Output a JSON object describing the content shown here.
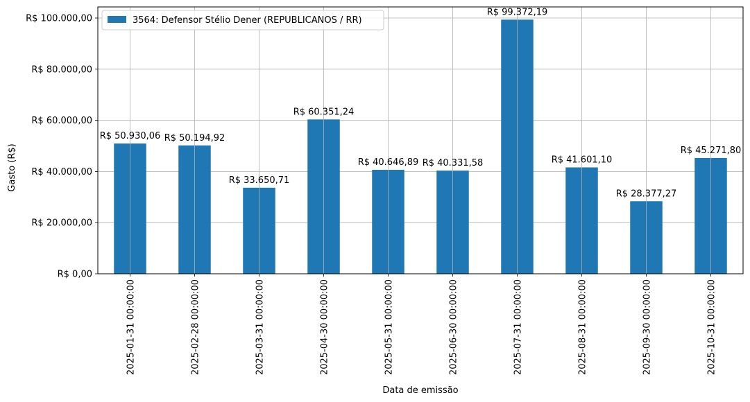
{
  "chart_data": {
    "type": "bar",
    "title": "",
    "xlabel": "Data de emissão",
    "ylabel": "Gasto (R$)",
    "categories": [
      "2025-01-31 00:00:00",
      "2025-02-28 00:00:00",
      "2025-03-31 00:00:00",
      "2025-04-30 00:00:00",
      "2025-05-31 00:00:00",
      "2025-06-30 00:00:00",
      "2025-07-31 00:00:00",
      "2025-08-31 00:00:00",
      "2025-09-30 00:00:00",
      "2025-10-31 00:00:00"
    ],
    "series": [
      {
        "name": "3564: Defensor Stélio Dener (REPUBLICANOS / RR)",
        "color": "#1f77b4",
        "values": [
          50930.06,
          50194.92,
          33650.71,
          60351.24,
          40646.89,
          40331.58,
          99372.19,
          41601.1,
          28377.27,
          45271.8
        ]
      }
    ],
    "data_labels": [
      "R$ 50.930,06",
      "R$ 50.194,92",
      "R$ 33.650,71",
      "R$ 60.351,24",
      "R$ 40.646,89",
      "R$ 40.331,58",
      "R$ 99.372,19",
      "R$ 41.601,10",
      "R$ 28.377,27",
      "R$ 45.271,80"
    ],
    "yticks": [
      0,
      20000,
      40000,
      60000,
      80000,
      100000
    ],
    "ytick_labels": [
      "R$ 0,00",
      "R$ 20.000,00",
      "R$ 40.000,00",
      "R$ 60.000,00",
      "R$ 80.000,00",
      "R$ 100.000,00"
    ],
    "ylim": [
      0,
      104340.8
    ],
    "grid": true,
    "legend_position": "top-left"
  }
}
